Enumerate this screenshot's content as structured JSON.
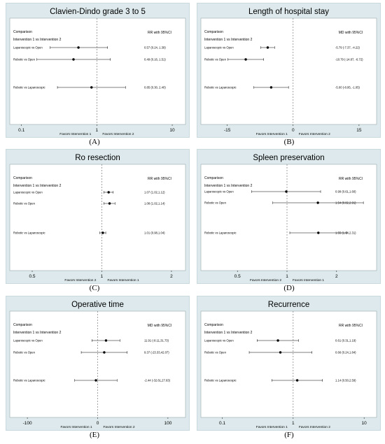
{
  "figure": {
    "panels": [
      {
        "label": "(A)"
      },
      {
        "label": "(B)"
      },
      {
        "label": "(C)"
      },
      {
        "label": "(D)"
      },
      {
        "label": "(E)"
      },
      {
        "label": "(F)"
      }
    ]
  },
  "chart_data": [
    {
      "type": "forest",
      "scale": "log",
      "title": "Clavien-Dindo grade 3 to 5",
      "header_left": [
        "Comparison",
        "Intervention 1 vs Intervention 2"
      ],
      "header_right": "RR with 95%CI",
      "xlim": [
        0.07,
        15
      ],
      "ticks": [
        {
          "value": 0.1,
          "label": "0.1"
        },
        {
          "value": 1,
          "label": "1"
        },
        {
          "value": 10,
          "label": "10"
        }
      ],
      "favors_left": "Favors Intervention 1",
      "favors_right": "Favors Intervention 2",
      "rows": [
        {
          "comparison": "Laparoscopic vs Open",
          "est": 0.57,
          "lo": 0.24,
          "hi": 1.39,
          "text": "0.57 (0.24, 1.39)"
        },
        {
          "comparison": "Robotic vs Open",
          "est": 0.49,
          "lo": 0.16,
          "hi": 1.51,
          "text": "0.49 (0.16, 1.51)"
        },
        {
          "comparison": "Robotic vs Laparoscopic",
          "est": 0.85,
          "lo": 0.3,
          "hi": 2.4,
          "text": "0.85 (0.30, 2.40)"
        }
      ]
    },
    {
      "type": "forest",
      "scale": "linear",
      "title": "Length of hospital stay",
      "header_left": [
        "Comparison",
        "Intervention 1 vs Intervention 2"
      ],
      "header_right": "MD with 95%CI",
      "xlim": [
        -21,
        19
      ],
      "ticks": [
        {
          "value": -15,
          "label": "-15"
        },
        {
          "value": 0,
          "label": "0"
        },
        {
          "value": 15,
          "label": "15"
        }
      ],
      "favors_left": "Favors Intervention 1",
      "favors_right": "Favors Intervention 2",
      "rows": [
        {
          "comparison": "Laparoscopic vs Open",
          "est": -5.79,
          "lo": -7.37,
          "hi": -4.22,
          "text": "-5.79 (-7.37, -4.22)"
        },
        {
          "comparison": "Robotic vs Open",
          "est": -10.79,
          "lo": -14.87,
          "hi": -6.72,
          "text": "-10.79 (-14.87, -6.72)"
        },
        {
          "comparison": "Robotic vs Laparoscopic",
          "est": -5.0,
          "lo": -8.95,
          "hi": -1.05,
          "text": "-5.00 (-8.95, -1.05)"
        }
      ]
    },
    {
      "type": "forest",
      "scale": "log",
      "title": "Ro resection",
      "header_left": [
        "Comparison",
        "Intervention 1 vs Intervention 2"
      ],
      "header_right": "RR with 95%CI",
      "xlim": [
        0.4,
        2.3
      ],
      "ticks": [
        {
          "value": 0.5,
          "label": "0.5"
        },
        {
          "value": 1,
          "label": "1"
        },
        {
          "value": 2,
          "label": "2"
        }
      ],
      "favors_left": "Favors Intervention 2",
      "favors_right": "Favors Intervention 1",
      "rows": [
        {
          "comparison": "Laparoscopic     vs Open",
          "est": 1.07,
          "lo": 1.02,
          "hi": 1.12,
          "text": "1.07 (1.02,1.12)"
        },
        {
          "comparison": "Robotic          vs Open",
          "est": 1.08,
          "lo": 1.02,
          "hi": 1.14,
          "text": "1.08 (1.02,1.14)"
        },
        {
          "comparison": "Robotic      vs Laparoscopic",
          "est": 1.01,
          "lo": 0.98,
          "hi": 1.04,
          "text": "1.01 (0.98,1.04)"
        }
      ]
    },
    {
      "type": "forest",
      "scale": "log",
      "title": "Spleen preservation",
      "header_left": [
        "Comparison",
        "Intervention 1 vs Intervention 2"
      ],
      "header_right": "RR with 95%CI",
      "xlim": [
        0.3,
        3.5
      ],
      "ticks": [
        {
          "value": 0.5,
          "label": "0.5"
        },
        {
          "value": 1,
          "label": "1"
        },
        {
          "value": 2,
          "label": "2"
        }
      ],
      "favors_left": "Favors Intervention 2",
      "favors_right": "Favors Intervention 1",
      "rows": [
        {
          "comparison": "Laparoscopic     vs Open",
          "est": 0.99,
          "lo": 0.61,
          "hi": 1.6,
          "text": "0.99 (0.61,1.60)"
        },
        {
          "comparison": "Robotic         vs Open",
          "est": 1.54,
          "lo": 0.82,
          "hi": 2.91,
          "text": "1.54 (0.82,2.91)"
        },
        {
          "comparison": "Robotic      vs Laparoscopic",
          "est": 1.55,
          "lo": 1.04,
          "hi": 2.31,
          "text": "1.55 (1.04,2.31)"
        }
      ]
    },
    {
      "type": "forest",
      "scale": "linear",
      "title": "Operative time",
      "header_left": [
        "Comparison",
        "Intervention 1 vs Intervention 2"
      ],
      "header_right": "MD with 95%CI",
      "xlim": [
        -125,
        125
      ],
      "ticks": [
        {
          "value": -100,
          "label": "-100"
        },
        {
          "value": 0,
          "label": "0"
        },
        {
          "value": 100,
          "label": "100"
        }
      ],
      "favors_left": "Favors Intervention 1",
      "favors_right": "Favors Intervention 2",
      "rows": [
        {
          "comparison": "Laparoscopic vs Open",
          "est": 11.91,
          "lo": -8.11,
          "hi": 31.73,
          "text": "11.91 (-8.11,31.73)"
        },
        {
          "comparison": "Robotic vs Open",
          "est": 9.37,
          "lo": -23.33,
          "hi": 42.07,
          "text": "9.37 (-23.33,42.07)"
        },
        {
          "comparison": "Robotic vs Laparoscopic",
          "est": -2.44,
          "lo": -32.61,
          "hi": 27.63,
          "text": "-2.44 (-32.61,27.63)"
        }
      ]
    },
    {
      "type": "forest",
      "scale": "log",
      "title": "Recurrence",
      "header_left": [
        "Comparison",
        "Intervention 1 vs Intervention 2"
      ],
      "header_right": "RR with 95%CI",
      "xlim": [
        0.05,
        15
      ],
      "ticks": [
        {
          "value": 0.1,
          "label": "0.1"
        },
        {
          "value": 1,
          "label": "1"
        },
        {
          "value": 10,
          "label": "10"
        }
      ],
      "favors_left": "Favors Intervention 1",
      "favors_right": "Favors Intervention 2",
      "rows": [
        {
          "comparison": "Laparoscopic     vs Open",
          "est": 0.61,
          "lo": 0.31,
          "hi": 1.19,
          "text": "0.61 (0.31,1.19)"
        },
        {
          "comparison": "Robotic          vs Open",
          "est": 0.66,
          "lo": 0.24,
          "hi": 1.84,
          "text": "0.66 (0.24,1.84)"
        },
        {
          "comparison": "Robotic     vs Laparoscopic",
          "est": 1.14,
          "lo": 0.5,
          "hi": 2.59,
          "text": "1.14 (0.50,2.59)"
        }
      ]
    }
  ]
}
